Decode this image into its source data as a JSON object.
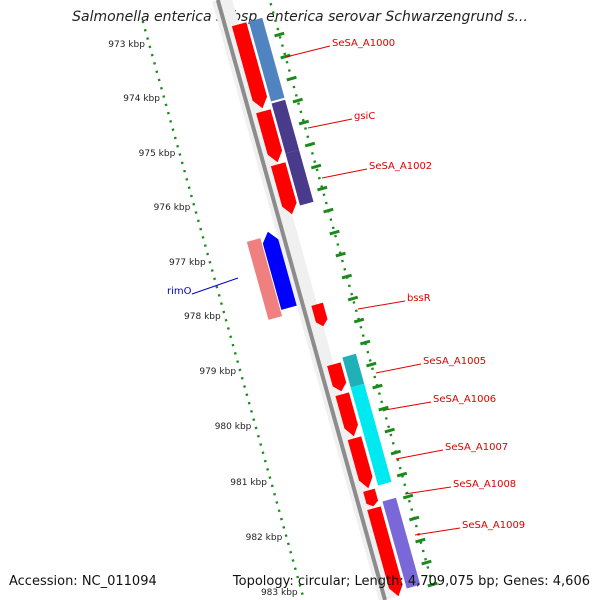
{
  "title": "Salmonella enterica subsp. enterica serovar Schwarzengrund s...",
  "accession": "Accession: NC_011094",
  "topology": "Topology: circular; Length: 4,709,075 bp; Genes: 4,606",
  "kbp_ticks": [
    {
      "label": "973 kbp"
    },
    {
      "label": "974 kbp"
    },
    {
      "label": "975 kbp"
    },
    {
      "label": "976 kbp"
    },
    {
      "label": "977 kbp"
    },
    {
      "label": "978 kbp"
    },
    {
      "label": "979 kbp"
    },
    {
      "label": "980 kbp"
    },
    {
      "label": "981 kbp"
    },
    {
      "label": "982 kbp"
    },
    {
      "label": "983 kbp"
    }
  ],
  "gene_labels": [
    {
      "name": "SeSA_A1000",
      "color": "#e00000"
    },
    {
      "name": "gsiC",
      "color": "#e00000"
    },
    {
      "name": "SeSA_A1002",
      "color": "#e00000"
    },
    {
      "name": "rimO",
      "color": "#0000cc"
    },
    {
      "name": "bssR",
      "color": "#e00000"
    },
    {
      "name": "SeSA_A1005",
      "color": "#e00000"
    },
    {
      "name": "SeSA_A1006",
      "color": "#e00000"
    },
    {
      "name": "SeSA_A1007",
      "color": "#e00000"
    },
    {
      "name": "SeSA_A1008",
      "color": "#e00000"
    },
    {
      "name": "SeSA_A1009",
      "color": "#e00000"
    }
  ],
  "colors": {
    "forward_gene": "#ff0000",
    "reverse_gene": "#ff0000",
    "reverse_gene_light": "#f08080",
    "rimO_gene": "#0000ff",
    "cog_steelblue": "#4f84c0",
    "cog_purple": "#4a3a8c",
    "cog_cyan": "#00e8f0",
    "cog_teal": "#20b0b8",
    "cog_violet": "#7b68d8",
    "backbone": "#8c8c8c",
    "tick_dots": "#1a8a1a"
  }
}
